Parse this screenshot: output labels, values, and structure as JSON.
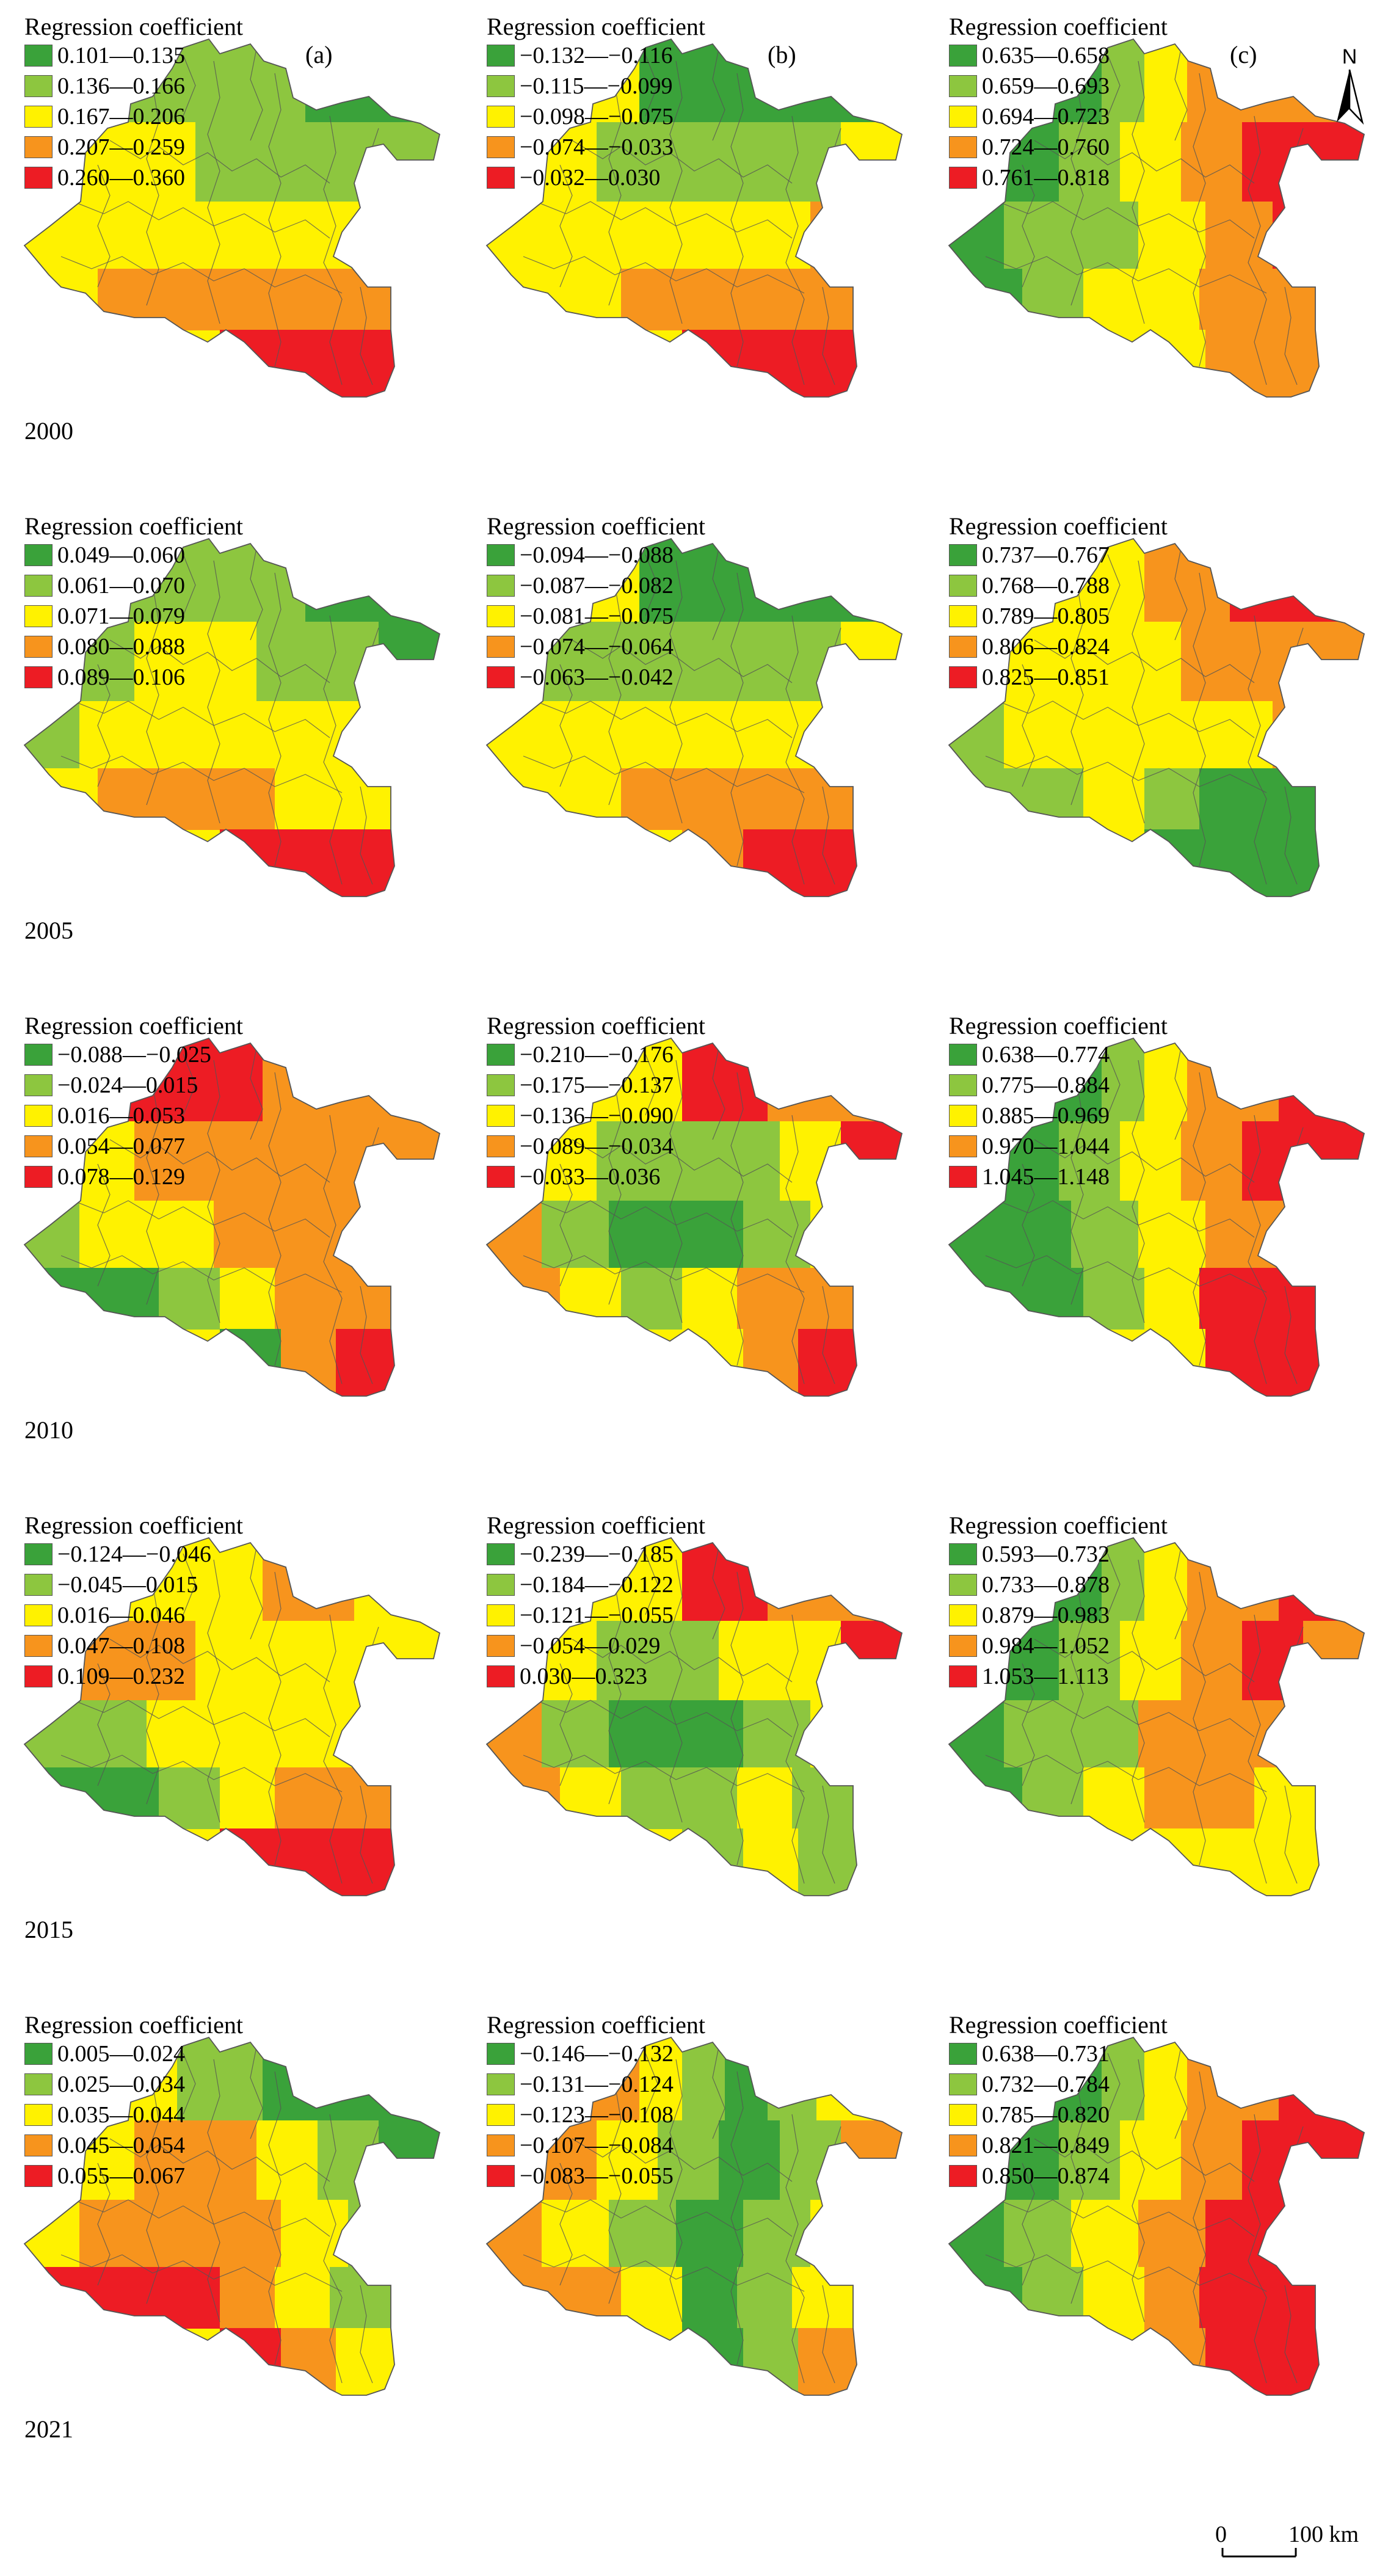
{
  "legend_title": "Regression coefficient",
  "panel_letters": [
    "(a)",
    "(b)",
    "(c)"
  ],
  "north_label": "N",
  "scale": {
    "zero": "0",
    "distance": "100 km"
  },
  "class_colors": [
    "#3aa23a",
    "#8dc63f",
    "#fff200",
    "#f7941d",
    "#ed1c24"
  ],
  "boundary_color": "#555555",
  "rows": [
    {
      "year": "2000",
      "panels": [
        {
          "letter": "(a)",
          "labels": [
            "0.101—0.135",
            "0.136—0.166",
            "0.167—0.206",
            "0.207—0.259",
            "0.260—0.360"
          ]
        },
        {
          "letter": "(b)",
          "labels": [
            "−0.132—−0.116",
            "−0.115—−0.099",
            "−0.098—−0.075",
            "−0.074—−0.033",
            "−0.032—0.030"
          ]
        },
        {
          "letter": "(c)",
          "labels": [
            "0.635—0.658",
            "0.659—0.693",
            "0.694—0.723",
            "0.724—0.760",
            "0.761—0.818"
          ]
        }
      ]
    },
    {
      "year": "2005",
      "panels": [
        {
          "letter": "",
          "labels": [
            "0.049—0.060",
            "0.061—0.070",
            "0.071—0.079",
            "0.080—0.088",
            "0.089—0.106"
          ]
        },
        {
          "letter": "",
          "labels": [
            "−0.094—−0.088",
            "−0.087—−0.082",
            "−0.081—−0.075",
            "−0.074—−0.064",
            "−0.063—−0.042"
          ]
        },
        {
          "letter": "",
          "labels": [
            "0.737—0.767",
            "0.768—0.788",
            "0.789—0.805",
            "0.806—0.824",
            "0.825—0.851"
          ]
        }
      ]
    },
    {
      "year": "2010",
      "panels": [
        {
          "letter": "",
          "labels": [
            "−0.088—−0.025",
            "−0.024—0.015",
            "0.016—0.053",
            "0.054—0.077",
            "0.078—0.129"
          ]
        },
        {
          "letter": "",
          "labels": [
            "−0.210—−0.176",
            "−0.175—−0.137",
            "−0.136—−0.090",
            "−0.089—−0.034",
            "−0.033—0.036"
          ]
        },
        {
          "letter": "",
          "labels": [
            "0.638—0.774",
            "0.775—0.884",
            "0.885—0.969",
            "0.970—1.044",
            "1.045—1.148"
          ]
        }
      ]
    },
    {
      "year": "2015",
      "panels": [
        {
          "letter": "",
          "labels": [
            "−0.124—−0.046",
            "−0.045—0.015",
            "0.016—0.046",
            "0.047—0.108",
            "0.109—0.232"
          ]
        },
        {
          "letter": "",
          "labels": [
            "−0.239—−0.185",
            "−0.184—−0.122",
            "−0.121—−0.055",
            "−0.054—0.029",
            "0.030—0.323"
          ]
        },
        {
          "letter": "",
          "labels": [
            "0.593—0.732",
            "0.733—0.878",
            "0.879—0.983",
            "0.984—1.052",
            "1.053—1.113"
          ]
        }
      ]
    },
    {
      "year": "2021",
      "panels": [
        {
          "letter": "",
          "labels": [
            "0.005—0.024",
            "0.025—0.034",
            "0.035—0.044",
            "0.045—0.054",
            "0.055—0.067"
          ]
        },
        {
          "letter": "",
          "labels": [
            "−0.146—−0.132",
            "−0.131—−0.124",
            "−0.123—−0.108",
            "−0.107—−0.084",
            "−0.083—−0.055"
          ]
        },
        {
          "letter": "",
          "labels": [
            "0.638—0.731",
            "0.732—0.784",
            "0.785—0.820",
            "0.821—0.849",
            "0.850—0.874"
          ]
        }
      ]
    }
  ]
}
